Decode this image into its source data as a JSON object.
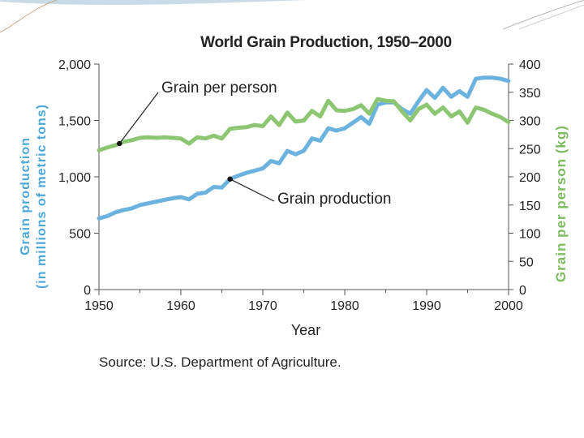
{
  "chart_data": {
    "type": "line",
    "title": "World Grain Production, 1950–2000",
    "xlabel": "Year",
    "ylabel_left_line1": "Grain production",
    "ylabel_left_line2": "(in millions of metric tons)",
    "ylabel_right": "Grain per person (kg)",
    "x_ticks": [
      1950,
      1960,
      1970,
      1980,
      1990,
      2000
    ],
    "y_left_ticks": [
      "0",
      "500",
      "1,000",
      "1,500",
      "2,000"
    ],
    "y_left_range": [
      0,
      2000
    ],
    "y_right_ticks": [
      "0",
      "50",
      "100",
      "150",
      "200",
      "250",
      "300",
      "350",
      "400"
    ],
    "y_right_range": [
      0,
      400
    ],
    "series": [
      {
        "name": "Grain production",
        "axis": "left",
        "color": "#6bb3de",
        "years": [
          1950,
          1951,
          1952,
          1953,
          1954,
          1955,
          1956,
          1957,
          1958,
          1959,
          1960,
          1961,
          1962,
          1963,
          1964,
          1965,
          1966,
          1967,
          1968,
          1969,
          1970,
          1971,
          1972,
          1973,
          1974,
          1975,
          1976,
          1977,
          1978,
          1979,
          1980,
          1981,
          1982,
          1983,
          1984,
          1985,
          1986,
          1987,
          1988,
          1989,
          1990,
          1991,
          1992,
          1993,
          1994,
          1995,
          1996,
          1997,
          1998,
          1999,
          2000
        ],
        "values": [
          631,
          651,
          685,
          706,
          720,
          750,
          765,
          780,
          796,
          810,
          820,
          800,
          850,
          860,
          910,
          905,
          980,
          1010,
          1035,
          1055,
          1075,
          1140,
          1120,
          1230,
          1200,
          1230,
          1340,
          1320,
          1430,
          1410,
          1430,
          1480,
          1530,
          1470,
          1640,
          1660,
          1660,
          1600,
          1560,
          1670,
          1770,
          1700,
          1790,
          1710,
          1760,
          1710,
          1870,
          1880,
          1880,
          1870,
          1850
        ]
      },
      {
        "name": "Grain per person",
        "axis": "right",
        "color": "#8cc672",
        "years": [
          1950,
          1951,
          1952,
          1953,
          1954,
          1955,
          1956,
          1957,
          1958,
          1959,
          1960,
          1961,
          1962,
          1963,
          1964,
          1965,
          1966,
          1967,
          1968,
          1969,
          1970,
          1971,
          1972,
          1973,
          1974,
          1975,
          1976,
          1977,
          1978,
          1979,
          1980,
          1981,
          1982,
          1983,
          1984,
          1985,
          1986,
          1987,
          1988,
          1989,
          1990,
          1991,
          1992,
          1993,
          1994,
          1995,
          1996,
          1997,
          1998,
          1999,
          2000
        ],
        "values": [
          247,
          252,
          256,
          262,
          265,
          269,
          270,
          269,
          270,
          269,
          268,
          259,
          270,
          268,
          273,
          268,
          285,
          287,
          288,
          292,
          290,
          307,
          292,
          314,
          298,
          300,
          317,
          307,
          335,
          318,
          317,
          320,
          327,
          312,
          338,
          335,
          334,
          316,
          300,
          320,
          328,
          312,
          323,
          307,
          316,
          296,
          323,
          319,
          312,
          306,
          297
        ]
      }
    ],
    "annotations": [
      {
        "text": "Grain per person",
        "series": "Grain per person",
        "year": 1952.5
      },
      {
        "text": "Grain production",
        "series": "Grain production",
        "year": 1966
      }
    ],
    "source": "Source: U.S. Department of Agriculture."
  }
}
